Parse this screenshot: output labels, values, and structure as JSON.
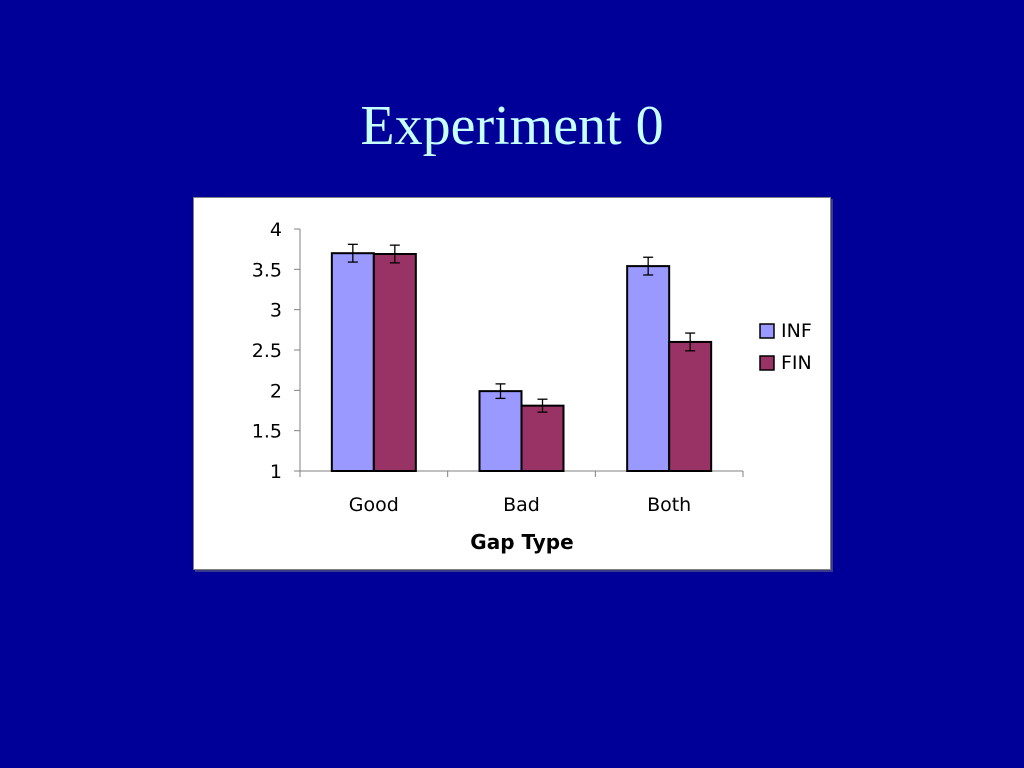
{
  "slide": {
    "title": "Experiment 0"
  },
  "chart_data": {
    "type": "bar",
    "categories": [
      "Good",
      "Bad",
      "Both"
    ],
    "series": [
      {
        "name": "INF",
        "color": "#9999ff",
        "values": [
          3.7,
          1.99,
          3.54
        ],
        "errors": [
          0.11,
          0.09,
          0.11
        ]
      },
      {
        "name": "FIN",
        "color": "#993366",
        "values": [
          3.69,
          1.81,
          2.6
        ],
        "errors": [
          0.11,
          0.08,
          0.11
        ]
      }
    ],
    "title": "",
    "xlabel": "Gap Type",
    "ylabel": "",
    "ylim": [
      1,
      4
    ],
    "yticks": [
      "1",
      "1.5",
      "2",
      "2.5",
      "3",
      "3.5",
      "4"
    ],
    "grid": false,
    "legend_position": "right"
  }
}
